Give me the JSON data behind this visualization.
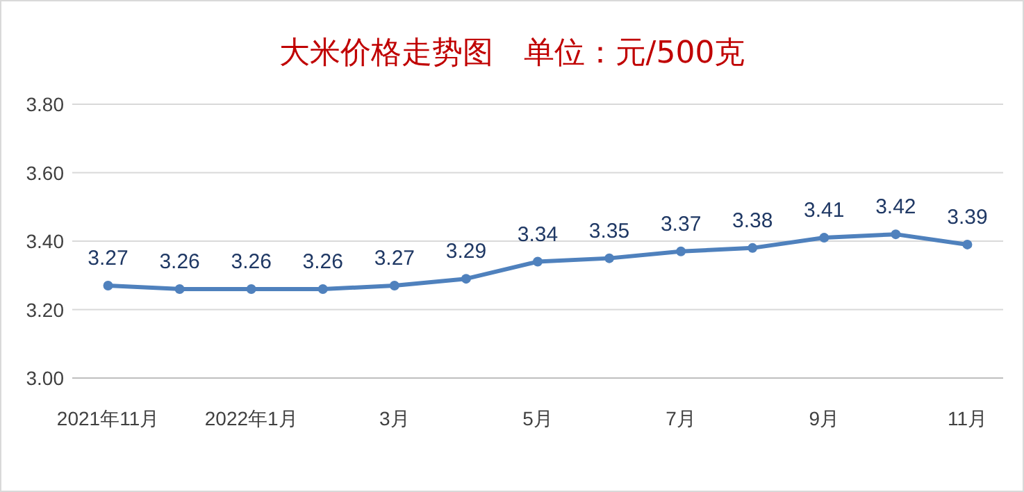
{
  "chart_data": {
    "type": "line",
    "title": "大米价格走势图　单位：元/500克",
    "categories": [
      "2021年11月",
      null,
      "2022年1月",
      null,
      "3月",
      null,
      "5月",
      null,
      "7月",
      null,
      "9月",
      null,
      "11月"
    ],
    "series": [
      {
        "color": "#4f81bd",
        "values": [
          3.27,
          3.26,
          3.26,
          3.26,
          3.27,
          3.29,
          3.34,
          3.35,
          3.37,
          3.38,
          3.41,
          3.42,
          3.39
        ]
      }
    ],
    "ylim": [
      3.0,
      3.8
    ],
    "yticks": [
      {
        "value": 3.0,
        "label": "3.00"
      },
      {
        "value": 3.2,
        "label": "3.20"
      },
      {
        "value": 3.4,
        "label": "3.40"
      },
      {
        "value": 3.6,
        "label": "3.60"
      },
      {
        "value": 3.8,
        "label": "3.80"
      }
    ],
    "grid": "y",
    "data_labels": true,
    "marker": "circle",
    "line_style": "solid"
  }
}
